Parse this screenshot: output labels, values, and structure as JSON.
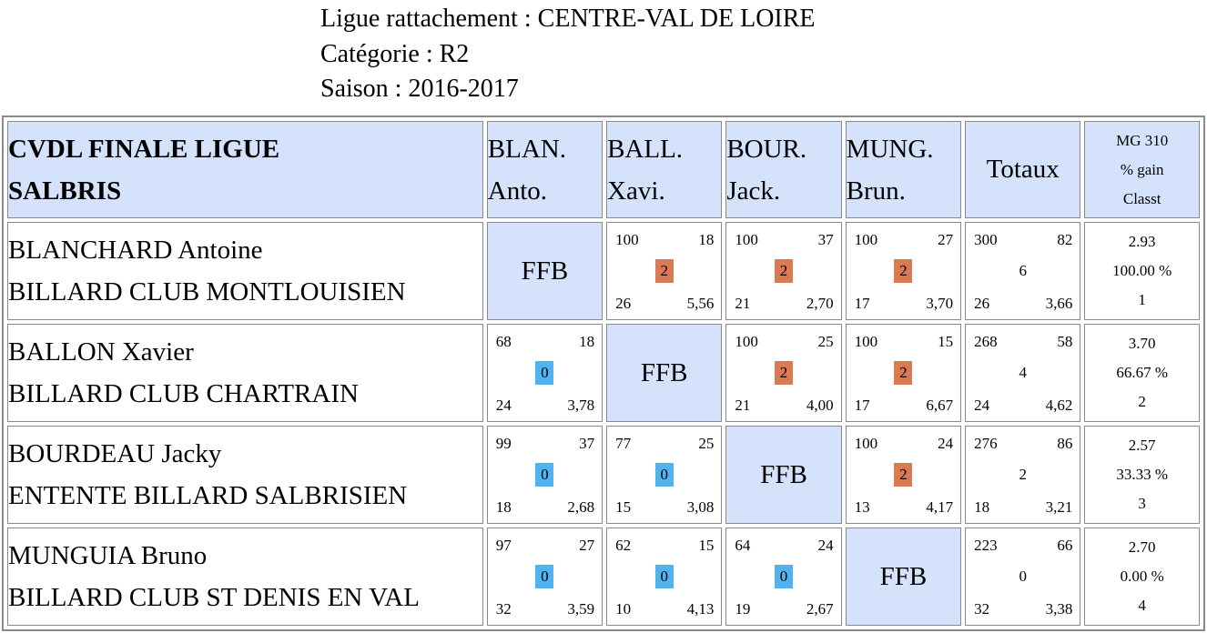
{
  "header": {
    "ligue": "Ligue rattachement : CENTRE-VAL DE LOIRE",
    "categorie": "Catégorie : R2",
    "saison": "Saison : 2016-2017"
  },
  "table": {
    "title_line1": "CVDL FINALE LIGUE",
    "title_line2": "SALBRIS",
    "columns": [
      {
        "l1": "BLAN.",
        "l2": "Anto."
      },
      {
        "l1": "BALL.",
        "l2": "Xavi."
      },
      {
        "l1": "BOUR.",
        "l2": "Jack."
      },
      {
        "l1": "MUNG.",
        "l2": "Brun."
      }
    ],
    "totals_label": "Totaux",
    "mg_header": {
      "l1": "MG 310",
      "l2": "% gain",
      "l3": "Classt"
    },
    "ffb": "FFB",
    "rows": [
      {
        "name": "BLANCHARD Antoine",
        "club": "BILLARD CLUB MONTLOUISIEN",
        "matches": [
          null,
          {
            "points": "100",
            "serie": "18",
            "result": "2",
            "reprises": "26",
            "moyenne": "5,56"
          },
          {
            "points": "100",
            "serie": "37",
            "result": "2",
            "reprises": "21",
            "moyenne": "2,70"
          },
          {
            "points": "100",
            "serie": "27",
            "result": "2",
            "reprises": "17",
            "moyenne": "3,70"
          }
        ],
        "totals": {
          "points": "300",
          "serie": "82",
          "pm": "6",
          "reprises": "26",
          "moyenne": "3,66"
        },
        "mg": "2.93",
        "pct": "100.00 %",
        "rank": "1"
      },
      {
        "name": "BALLON Xavier",
        "club": "BILLARD CLUB CHARTRAIN",
        "matches": [
          {
            "points": "68",
            "serie": "18",
            "result": "0",
            "reprises": "24",
            "moyenne": "3,78"
          },
          null,
          {
            "points": "100",
            "serie": "25",
            "result": "2",
            "reprises": "21",
            "moyenne": "4,00"
          },
          {
            "points": "100",
            "serie": "15",
            "result": "2",
            "reprises": "17",
            "moyenne": "6,67"
          }
        ],
        "totals": {
          "points": "268",
          "serie": "58",
          "pm": "4",
          "reprises": "24",
          "moyenne": "4,62"
        },
        "mg": "3.70",
        "pct": "66.67 %",
        "rank": "2"
      },
      {
        "name": "BOURDEAU Jacky",
        "club": "ENTENTE BILLARD SALBRISIEN",
        "matches": [
          {
            "points": "99",
            "serie": "37",
            "result": "0",
            "reprises": "18",
            "moyenne": "2,68"
          },
          {
            "points": "77",
            "serie": "25",
            "result": "0",
            "reprises": "15",
            "moyenne": "3,08"
          },
          null,
          {
            "points": "100",
            "serie": "24",
            "result": "2",
            "reprises": "13",
            "moyenne": "4,17"
          }
        ],
        "totals": {
          "points": "276",
          "serie": "86",
          "pm": "2",
          "reprises": "18",
          "moyenne": "3,21"
        },
        "mg": "2.57",
        "pct": "33.33 %",
        "rank": "3"
      },
      {
        "name": "MUNGUIA Bruno",
        "club": "BILLARD CLUB ST DENIS EN VAL",
        "matches": [
          {
            "points": "97",
            "serie": "27",
            "result": "0",
            "reprises": "32",
            "moyenne": "3,59"
          },
          {
            "points": "62",
            "serie": "15",
            "result": "0",
            "reprises": "10",
            "moyenne": "4,13"
          },
          {
            "points": "64",
            "serie": "24",
            "result": "0",
            "reprises": "19",
            "moyenne": "2,67"
          },
          null
        ],
        "totals": {
          "points": "223",
          "serie": "66",
          "pm": "0",
          "reprises": "32",
          "moyenne": "3,38"
        },
        "mg": "2.70",
        "pct": "0.00 %",
        "rank": "4"
      }
    ]
  },
  "colors": {
    "header_bg": "#d4e3fb",
    "win_badge": "#d97a52",
    "loss_badge": "#4fb3ef",
    "border": "#8a8a8a"
  }
}
